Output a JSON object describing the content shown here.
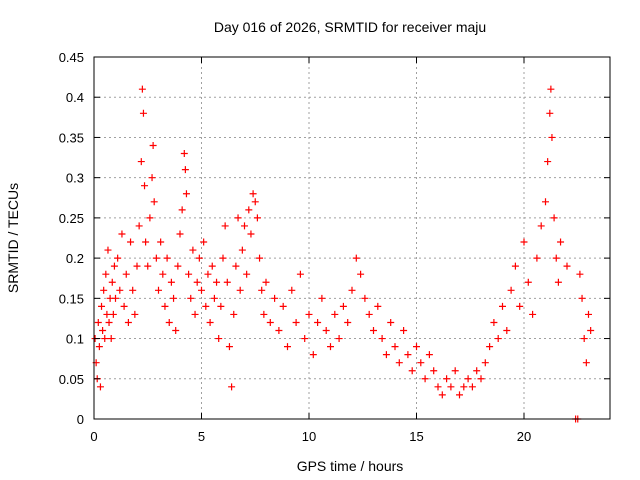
{
  "chart_data": {
    "type": "scatter",
    "title": "Day 016 of 2026, SRMTID for receiver maju",
    "xlabel": "GPS time / hours",
    "ylabel": "SRMTID / TECUs",
    "xlim": [
      0,
      24
    ],
    "ylim": [
      0,
      0.45
    ],
    "xticks": [
      0,
      5,
      10,
      15,
      20
    ],
    "yticks": [
      0,
      0.05,
      0.1,
      0.15,
      0.2,
      0.25,
      0.3,
      0.35,
      0.4,
      0.45
    ],
    "xtick_labels": [
      "0",
      "5",
      "10",
      "15",
      "20"
    ],
    "ytick_labels": [
      "0",
      "0.05",
      "0.1",
      "0.15",
      "0.2",
      "0.25",
      "0.3",
      "0.35",
      "0.4",
      "0.45"
    ],
    "grid": true,
    "marker": "+",
    "color": "#ff0000",
    "series": [
      {
        "name": "SRMTID",
        "points": [
          [
            0.05,
            0.1
          ],
          [
            0.1,
            0.07
          ],
          [
            0.15,
            0.05
          ],
          [
            0.2,
            0.12
          ],
          [
            0.25,
            0.09
          ],
          [
            0.3,
            0.04
          ],
          [
            0.35,
            0.14
          ],
          [
            0.4,
            0.11
          ],
          [
            0.45,
            0.16
          ],
          [
            0.5,
            0.1
          ],
          [
            0.55,
            0.18
          ],
          [
            0.6,
            0.13
          ],
          [
            0.65,
            0.21
          ],
          [
            0.7,
            0.12
          ],
          [
            0.75,
            0.15
          ],
          [
            0.8,
            0.1
          ],
          [
            0.85,
            0.17
          ],
          [
            0.9,
            0.13
          ],
          [
            0.95,
            0.19
          ],
          [
            1.0,
            0.15
          ],
          [
            1.1,
            0.2
          ],
          [
            1.2,
            0.16
          ],
          [
            1.3,
            0.23
          ],
          [
            1.4,
            0.14
          ],
          [
            1.5,
            0.18
          ],
          [
            1.6,
            0.12
          ],
          [
            1.7,
            0.22
          ],
          [
            1.8,
            0.16
          ],
          [
            1.9,
            0.13
          ],
          [
            2.0,
            0.19
          ],
          [
            2.1,
            0.24
          ],
          [
            2.2,
            0.32
          ],
          [
            2.25,
            0.41
          ],
          [
            2.3,
            0.38
          ],
          [
            2.35,
            0.29
          ],
          [
            2.4,
            0.22
          ],
          [
            2.5,
            0.19
          ],
          [
            2.6,
            0.25
          ],
          [
            2.7,
            0.3
          ],
          [
            2.75,
            0.34
          ],
          [
            2.8,
            0.27
          ],
          [
            2.9,
            0.2
          ],
          [
            3.0,
            0.16
          ],
          [
            3.1,
            0.22
          ],
          [
            3.2,
            0.18
          ],
          [
            3.3,
            0.14
          ],
          [
            3.4,
            0.2
          ],
          [
            3.5,
            0.12
          ],
          [
            3.6,
            0.17
          ],
          [
            3.7,
            0.15
          ],
          [
            3.8,
            0.11
          ],
          [
            3.9,
            0.19
          ],
          [
            4.0,
            0.23
          ],
          [
            4.1,
            0.26
          ],
          [
            4.2,
            0.33
          ],
          [
            4.25,
            0.31
          ],
          [
            4.3,
            0.28
          ],
          [
            4.4,
            0.18
          ],
          [
            4.5,
            0.15
          ],
          [
            4.6,
            0.21
          ],
          [
            4.7,
            0.13
          ],
          [
            4.8,
            0.17
          ],
          [
            4.9,
            0.2
          ],
          [
            5.0,
            0.16
          ],
          [
            5.1,
            0.22
          ],
          [
            5.2,
            0.14
          ],
          [
            5.3,
            0.18
          ],
          [
            5.4,
            0.12
          ],
          [
            5.5,
            0.19
          ],
          [
            5.6,
            0.15
          ],
          [
            5.7,
            0.17
          ],
          [
            5.8,
            0.1
          ],
          [
            5.9,
            0.14
          ],
          [
            6.0,
            0.2
          ],
          [
            6.1,
            0.24
          ],
          [
            6.2,
            0.17
          ],
          [
            6.3,
            0.09
          ],
          [
            6.4,
            0.04
          ],
          [
            6.5,
            0.13
          ],
          [
            6.6,
            0.19
          ],
          [
            6.7,
            0.25
          ],
          [
            6.8,
            0.16
          ],
          [
            6.9,
            0.21
          ],
          [
            7.0,
            0.24
          ],
          [
            7.1,
            0.18
          ],
          [
            7.2,
            0.26
          ],
          [
            7.3,
            0.23
          ],
          [
            7.4,
            0.28
          ],
          [
            7.5,
            0.27
          ],
          [
            7.6,
            0.25
          ],
          [
            7.7,
            0.2
          ],
          [
            7.8,
            0.16
          ],
          [
            7.9,
            0.13
          ],
          [
            8.0,
            0.17
          ],
          [
            8.2,
            0.12
          ],
          [
            8.4,
            0.15
          ],
          [
            8.6,
            0.11
          ],
          [
            8.8,
            0.14
          ],
          [
            9.0,
            0.09
          ],
          [
            9.2,
            0.16
          ],
          [
            9.4,
            0.12
          ],
          [
            9.6,
            0.18
          ],
          [
            9.8,
            0.1
          ],
          [
            10.0,
            0.13
          ],
          [
            10.2,
            0.08
          ],
          [
            10.4,
            0.12
          ],
          [
            10.6,
            0.15
          ],
          [
            10.8,
            0.11
          ],
          [
            11.0,
            0.09
          ],
          [
            11.2,
            0.13
          ],
          [
            11.4,
            0.1
          ],
          [
            11.6,
            0.14
          ],
          [
            11.8,
            0.12
          ],
          [
            12.0,
            0.16
          ],
          [
            12.2,
            0.2
          ],
          [
            12.4,
            0.18
          ],
          [
            12.6,
            0.15
          ],
          [
            12.8,
            0.13
          ],
          [
            13.0,
            0.11
          ],
          [
            13.2,
            0.14
          ],
          [
            13.4,
            0.1
          ],
          [
            13.6,
            0.08
          ],
          [
            13.8,
            0.12
          ],
          [
            14.0,
            0.09
          ],
          [
            14.2,
            0.07
          ],
          [
            14.4,
            0.11
          ],
          [
            14.6,
            0.08
          ],
          [
            14.8,
            0.06
          ],
          [
            15.0,
            0.09
          ],
          [
            15.2,
            0.07
          ],
          [
            15.4,
            0.05
          ],
          [
            15.6,
            0.08
          ],
          [
            15.8,
            0.06
          ],
          [
            16.0,
            0.04
          ],
          [
            16.2,
            0.03
          ],
          [
            16.4,
            0.05
          ],
          [
            16.6,
            0.04
          ],
          [
            16.8,
            0.06
          ],
          [
            17.0,
            0.03
          ],
          [
            17.2,
            0.04
          ],
          [
            17.4,
            0.05
          ],
          [
            17.6,
            0.04
          ],
          [
            17.8,
            0.06
          ],
          [
            18.0,
            0.05
          ],
          [
            18.2,
            0.07
          ],
          [
            18.4,
            0.09
          ],
          [
            18.6,
            0.12
          ],
          [
            18.8,
            0.1
          ],
          [
            19.0,
            0.14
          ],
          [
            19.2,
            0.11
          ],
          [
            19.4,
            0.16
          ],
          [
            19.6,
            0.19
          ],
          [
            19.8,
            0.14
          ],
          [
            20.0,
            0.22
          ],
          [
            20.2,
            0.17
          ],
          [
            20.4,
            0.13
          ],
          [
            20.6,
            0.2
          ],
          [
            20.8,
            0.24
          ],
          [
            21.0,
            0.27
          ],
          [
            21.1,
            0.32
          ],
          [
            21.2,
            0.38
          ],
          [
            21.25,
            0.41
          ],
          [
            21.3,
            0.35
          ],
          [
            21.4,
            0.25
          ],
          [
            21.5,
            0.2
          ],
          [
            21.6,
            0.17
          ],
          [
            21.7,
            0.22
          ],
          [
            22.0,
            0.19
          ],
          [
            22.4,
            0.0
          ],
          [
            22.5,
            0.0
          ],
          [
            22.6,
            0.18
          ],
          [
            22.7,
            0.15
          ],
          [
            22.8,
            0.1
          ],
          [
            22.9,
            0.07
          ],
          [
            23.0,
            0.13
          ],
          [
            23.1,
            0.11
          ]
        ]
      }
    ]
  }
}
